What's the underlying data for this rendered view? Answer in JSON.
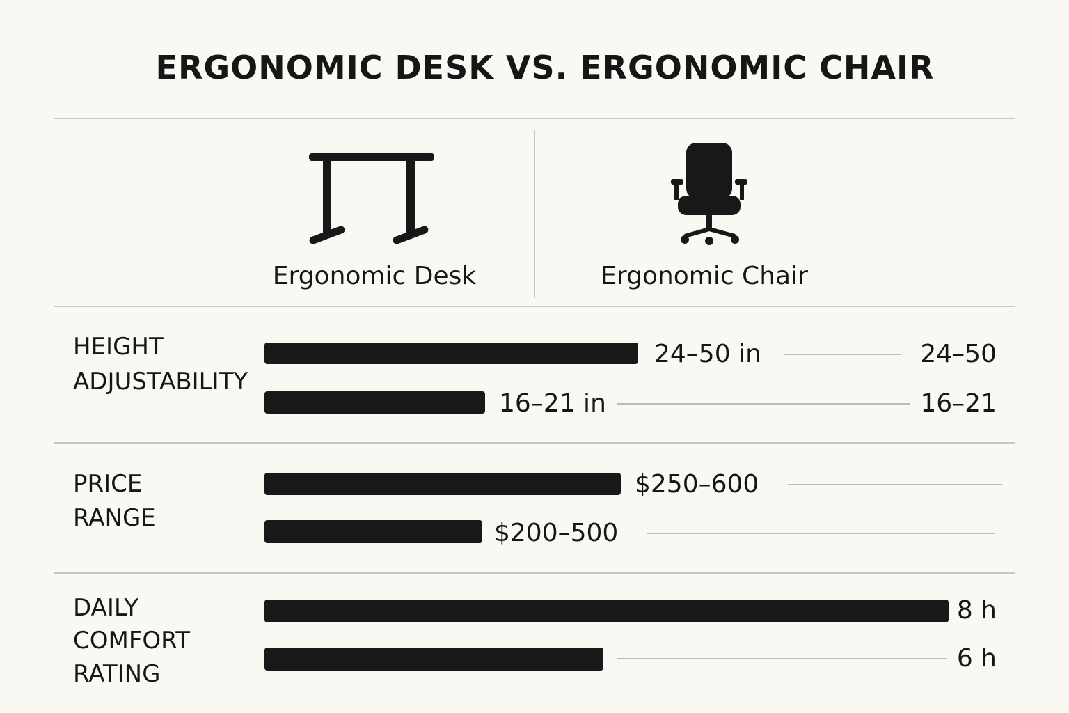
{
  "title": "ERGONOMIC DESK VS. ERGONOMIC CHAIR",
  "columns": [
    "Ergonomic Desk",
    "Ergonomic Chair"
  ],
  "rows": [
    {
      "label": [
        "HEIGHT",
        "ADJUSTABILITY"
      ],
      "items": [
        {
          "value": "24–50 in",
          "right": "24–50"
        },
        {
          "value": "16–21 in",
          "right": "16–21"
        }
      ]
    },
    {
      "label": [
        "PRICE",
        "RANGE"
      ],
      "items": [
        {
          "value": "$250–600"
        },
        {
          "value": "$200–500"
        }
      ]
    },
    {
      "label": [
        "DAILY",
        "COMFORT",
        "RATING"
      ],
      "items": [
        {
          "value": "8 h"
        },
        {
          "value": "6 h"
        }
      ]
    }
  ]
}
